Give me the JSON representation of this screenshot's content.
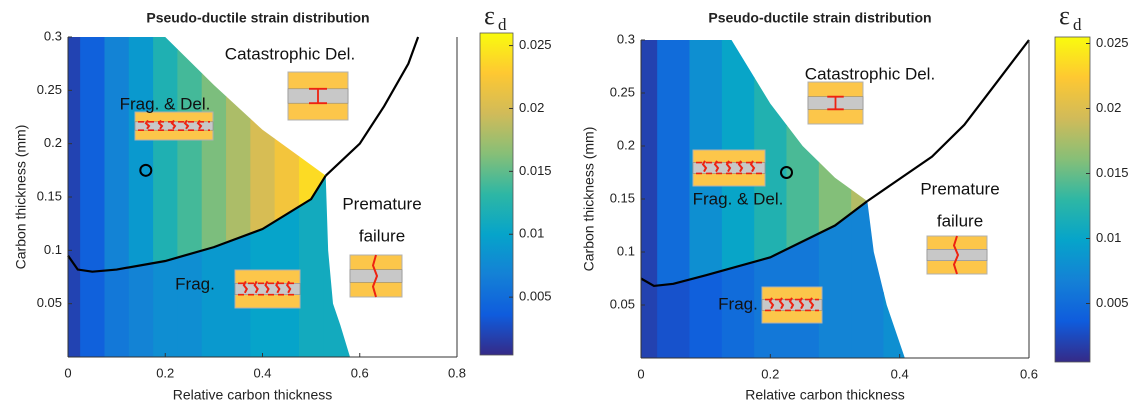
{
  "chart_data": [
    {
      "type": "region-map",
      "title": "Pseudo-ductile strain distribution",
      "xlabel": "Relative carbon thickness",
      "ylabel": "Carbon thickness (mm)",
      "xlim": [
        0,
        0.8
      ],
      "xticks": [
        0,
        0.2,
        0.4,
        0.6,
        0.8
      ],
      "ylim": [
        0,
        0.3
      ],
      "yticks": [
        0.05,
        0.1,
        0.15,
        0.2,
        0.25,
        0.3
      ],
      "colorbar_symbol": "ε",
      "colorbar_subscript": "d",
      "clim": [
        0.0004,
        0.026
      ],
      "cticks": [
        0.005,
        0.01,
        0.015,
        0.02,
        0.025
      ],
      "colormap": [
        "#352a87",
        "#0f5cdd",
        "#1481d6",
        "#06a4ca",
        "#2eb7a4",
        "#87bf77",
        "#d1bb59",
        "#fec832",
        "#f9fb0e"
      ],
      "strain_x": [
        0,
        0.05,
        0.1,
        0.15,
        0.2,
        0.25,
        0.3,
        0.35,
        0.4,
        0.45,
        0.5,
        0.55
      ],
      "strain_upper": [
        0.002,
        0.004,
        0.007,
        0.009,
        0.012,
        0.014,
        0.016,
        0.018,
        0.02,
        0.022,
        0.024,
        0.025
      ],
      "strain_lower": [
        0.002,
        0.004,
        0.006,
        0.007,
        0.008,
        0.008,
        0.009,
        0.009,
        0.01,
        0.01,
        0.011,
        0.011
      ],
      "lower_curve": {
        "x": [
          0,
          0.02,
          0.05,
          0.1,
          0.2,
          0.3,
          0.4,
          0.5,
          0.53
        ],
        "y": [
          0.095,
          0.082,
          0.08,
          0.082,
          0.09,
          0.103,
          0.12,
          0.148,
          0.17
        ]
      },
      "left_curve": {
        "x": [
          0.2,
          0.3,
          0.4,
          0.5,
          0.53
        ],
        "y": [
          0.3,
          0.255,
          0.213,
          0.18,
          0.17
        ]
      },
      "right_curve": {
        "x": [
          0.53,
          0.6,
          0.65,
          0.7,
          0.72
        ],
        "y": [
          0.17,
          0.2,
          0.235,
          0.275,
          0.3
        ]
      },
      "edge_curve": {
        "x": [
          0.53,
          0.535,
          0.545,
          0.56,
          0.58
        ],
        "y": [
          0.17,
          0.1,
          0.05,
          0.03,
          0
        ]
      },
      "marker": {
        "x": 0.16,
        "y": 0.175
      },
      "annotations": [
        "Catastrophic Del.",
        "Frag. & Del.",
        "Premature",
        "failure",
        "Frag."
      ]
    },
    {
      "type": "region-map",
      "title": "Pseudo-ductile strain distribution",
      "xlabel": "Relative carbon thickness",
      "ylabel": "Carbon thickness (mm)",
      "xlim": [
        0,
        0.6
      ],
      "xticks": [
        0,
        0.2,
        0.4,
        0.6
      ],
      "ylim": [
        0,
        0.3
      ],
      "yticks": [
        0.05,
        0.1,
        0.15,
        0.2,
        0.25,
        0.3
      ],
      "colorbar_symbol": "ε",
      "colorbar_subscript": "d",
      "clim": [
        0.0005,
        0.0255
      ],
      "cticks": [
        0.005,
        0.01,
        0.015,
        0.02,
        0.025
      ],
      "colormap": [
        "#352a87",
        "#0f5cdd",
        "#1481d6",
        "#06a4ca",
        "#2eb7a4",
        "#87bf77",
        "#d1bb59",
        "#fec832",
        "#f9fb0e"
      ],
      "strain_x": [
        0,
        0.05,
        0.1,
        0.15,
        0.2,
        0.25,
        0.3,
        0.35,
        0.4
      ],
      "strain_upper": [
        0.002,
        0.005,
        0.008,
        0.01,
        0.012,
        0.014,
        0.016,
        0.018,
        0.02
      ],
      "strain_lower": [
        0.002,
        0.003,
        0.004,
        0.005,
        0.006,
        0.006,
        0.007,
        0.007,
        0.008
      ],
      "lower_curve": {
        "x": [
          0,
          0.02,
          0.05,
          0.1,
          0.2,
          0.3,
          0.35
        ],
        "y": [
          0.075,
          0.068,
          0.07,
          0.078,
          0.095,
          0.125,
          0.148
        ]
      },
      "left_curve": {
        "x": [
          0.14,
          0.2,
          0.25,
          0.3,
          0.35
        ],
        "y": [
          0.3,
          0.24,
          0.2,
          0.17,
          0.148
        ]
      },
      "right_curve": {
        "x": [
          0.35,
          0.45,
          0.5,
          0.55,
          0.6
        ],
        "y": [
          0.148,
          0.19,
          0.22,
          0.26,
          0.3
        ]
      },
      "edge_curve": {
        "x": [
          0.35,
          0.36,
          0.38,
          0.408
        ],
        "y": [
          0.148,
          0.1,
          0.05,
          0
        ]
      },
      "marker": {
        "x": 0.225,
        "y": 0.175
      },
      "annotations": [
        "Catastrophic Del.",
        "Frag. & Del.",
        "Premature",
        "failure",
        "Frag."
      ]
    }
  ]
}
